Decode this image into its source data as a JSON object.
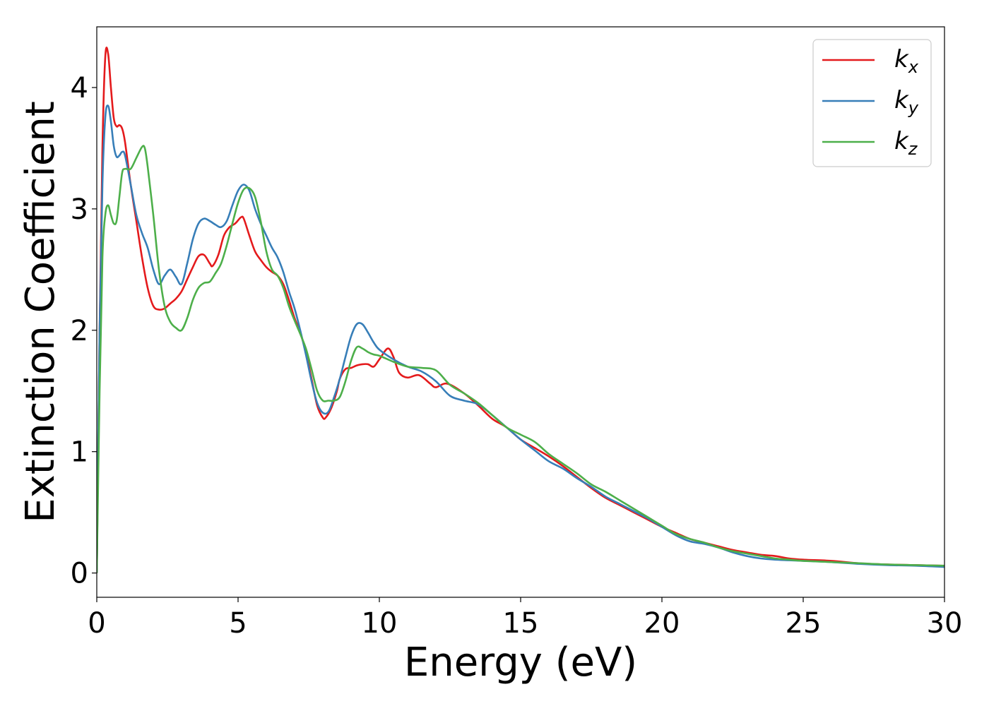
{
  "chart_data": {
    "type": "line",
    "xlabel": "Energy (eV)",
    "ylabel": "Extinction Coefficient",
    "xlim": [
      0,
      30
    ],
    "ylim": [
      -0.2,
      4.5
    ],
    "xticks": [
      0,
      5,
      10,
      15,
      20,
      25,
      30
    ],
    "yticks": [
      0,
      1,
      2,
      3,
      4
    ],
    "xtick_labels": [
      "0",
      "5",
      "10",
      "15",
      "20",
      "25",
      "30"
    ],
    "ytick_labels": [
      "0",
      "1",
      "2",
      "3",
      "4"
    ],
    "grid": false,
    "legend": {
      "position": "top-right",
      "entries": [
        {
          "base": "k",
          "sub": "x",
          "color": "#e41a1c"
        },
        {
          "base": "k",
          "sub": "y",
          "color": "#377eb8"
        },
        {
          "base": "k",
          "sub": "z",
          "color": "#4daf4a"
        }
      ]
    },
    "series": [
      {
        "name": "k_x",
        "color": "#e41a1c",
        "points": [
          [
            0,
            0
          ],
          [
            0.1,
            2.0
          ],
          [
            0.2,
            3.5
          ],
          [
            0.3,
            4.25
          ],
          [
            0.4,
            4.28
          ],
          [
            0.5,
            4.0
          ],
          [
            0.6,
            3.75
          ],
          [
            0.7,
            3.68
          ],
          [
            0.8,
            3.69
          ],
          [
            0.9,
            3.66
          ],
          [
            1.0,
            3.55
          ],
          [
            1.2,
            3.2
          ],
          [
            1.4,
            2.9
          ],
          [
            1.6,
            2.6
          ],
          [
            1.8,
            2.35
          ],
          [
            2.0,
            2.2
          ],
          [
            2.2,
            2.17
          ],
          [
            2.4,
            2.18
          ],
          [
            2.6,
            2.22
          ],
          [
            2.8,
            2.26
          ],
          [
            3.0,
            2.32
          ],
          [
            3.2,
            2.42
          ],
          [
            3.4,
            2.52
          ],
          [
            3.6,
            2.61
          ],
          [
            3.8,
            2.62
          ],
          [
            4.0,
            2.55
          ],
          [
            4.1,
            2.53
          ],
          [
            4.3,
            2.62
          ],
          [
            4.5,
            2.78
          ],
          [
            4.7,
            2.85
          ],
          [
            4.9,
            2.88
          ],
          [
            5.1,
            2.93
          ],
          [
            5.2,
            2.92
          ],
          [
            5.4,
            2.78
          ],
          [
            5.6,
            2.65
          ],
          [
            5.8,
            2.58
          ],
          [
            6.0,
            2.52
          ],
          [
            6.2,
            2.48
          ],
          [
            6.4,
            2.45
          ],
          [
            6.6,
            2.38
          ],
          [
            6.8,
            2.25
          ],
          [
            7.0,
            2.1
          ],
          [
            7.2,
            1.98
          ],
          [
            7.4,
            1.82
          ],
          [
            7.6,
            1.6
          ],
          [
            7.8,
            1.38
          ],
          [
            8.0,
            1.28
          ],
          [
            8.1,
            1.28
          ],
          [
            8.3,
            1.36
          ],
          [
            8.5,
            1.5
          ],
          [
            8.6,
            1.6
          ],
          [
            8.8,
            1.68
          ],
          [
            9.0,
            1.69
          ],
          [
            9.2,
            1.71
          ],
          [
            9.4,
            1.72
          ],
          [
            9.6,
            1.72
          ],
          [
            9.8,
            1.7
          ],
          [
            10.0,
            1.76
          ],
          [
            10.3,
            1.85
          ],
          [
            10.5,
            1.78
          ],
          [
            10.7,
            1.65
          ],
          [
            11.0,
            1.61
          ],
          [
            11.4,
            1.63
          ],
          [
            11.8,
            1.56
          ],
          [
            12.0,
            1.53
          ],
          [
            12.4,
            1.56
          ],
          [
            13.0,
            1.48
          ],
          [
            13.5,
            1.38
          ],
          [
            14.0,
            1.27
          ],
          [
            14.5,
            1.2
          ],
          [
            15.0,
            1.1
          ],
          [
            15.5,
            1.03
          ],
          [
            16.0,
            0.96
          ],
          [
            16.5,
            0.88
          ],
          [
            17.0,
            0.79
          ],
          [
            17.5,
            0.7
          ],
          [
            18.0,
            0.62
          ],
          [
            18.5,
            0.56
          ],
          [
            19.0,
            0.5
          ],
          [
            19.5,
            0.44
          ],
          [
            20.0,
            0.38
          ],
          [
            20.5,
            0.33
          ],
          [
            21.0,
            0.28
          ],
          [
            21.5,
            0.25
          ],
          [
            22.0,
            0.22
          ],
          [
            22.5,
            0.19
          ],
          [
            23.0,
            0.17
          ],
          [
            23.5,
            0.15
          ],
          [
            24.0,
            0.14
          ],
          [
            24.5,
            0.12
          ],
          [
            25.0,
            0.11
          ],
          [
            26.0,
            0.1
          ],
          [
            27.0,
            0.08
          ],
          [
            28.0,
            0.07
          ],
          [
            29.0,
            0.065
          ],
          [
            30.0,
            0.06
          ]
        ]
      },
      {
        "name": "k_y",
        "color": "#377eb8",
        "points": [
          [
            0,
            0
          ],
          [
            0.1,
            2.0
          ],
          [
            0.2,
            3.2
          ],
          [
            0.3,
            3.75
          ],
          [
            0.4,
            3.85
          ],
          [
            0.5,
            3.72
          ],
          [
            0.6,
            3.52
          ],
          [
            0.7,
            3.43
          ],
          [
            0.8,
            3.44
          ],
          [
            0.9,
            3.47
          ],
          [
            1.0,
            3.44
          ],
          [
            1.2,
            3.2
          ],
          [
            1.4,
            2.95
          ],
          [
            1.6,
            2.8
          ],
          [
            1.8,
            2.68
          ],
          [
            2.0,
            2.5
          ],
          [
            2.2,
            2.38
          ],
          [
            2.4,
            2.45
          ],
          [
            2.6,
            2.5
          ],
          [
            2.8,
            2.44
          ],
          [
            3.0,
            2.38
          ],
          [
            3.2,
            2.55
          ],
          [
            3.4,
            2.75
          ],
          [
            3.6,
            2.88
          ],
          [
            3.8,
            2.92
          ],
          [
            4.0,
            2.9
          ],
          [
            4.2,
            2.87
          ],
          [
            4.4,
            2.85
          ],
          [
            4.6,
            2.9
          ],
          [
            4.8,
            3.03
          ],
          [
            5.0,
            3.15
          ],
          [
            5.2,
            3.2
          ],
          [
            5.4,
            3.15
          ],
          [
            5.6,
            3.0
          ],
          [
            5.8,
            2.88
          ],
          [
            6.0,
            2.78
          ],
          [
            6.2,
            2.68
          ],
          [
            6.4,
            2.6
          ],
          [
            6.6,
            2.48
          ],
          [
            6.8,
            2.32
          ],
          [
            7.0,
            2.18
          ],
          [
            7.2,
            2.0
          ],
          [
            7.4,
            1.8
          ],
          [
            7.6,
            1.58
          ],
          [
            7.8,
            1.4
          ],
          [
            8.0,
            1.32
          ],
          [
            8.2,
            1.33
          ],
          [
            8.4,
            1.45
          ],
          [
            8.6,
            1.6
          ],
          [
            8.8,
            1.78
          ],
          [
            9.0,
            1.95
          ],
          [
            9.2,
            2.05
          ],
          [
            9.4,
            2.05
          ],
          [
            9.6,
            1.98
          ],
          [
            9.8,
            1.9
          ],
          [
            10.0,
            1.84
          ],
          [
            10.5,
            1.76
          ],
          [
            11.0,
            1.7
          ],
          [
            11.5,
            1.66
          ],
          [
            12.0,
            1.58
          ],
          [
            12.5,
            1.46
          ],
          [
            13.0,
            1.42
          ],
          [
            13.5,
            1.39
          ],
          [
            14.0,
            1.3
          ],
          [
            14.5,
            1.2
          ],
          [
            15.0,
            1.1
          ],
          [
            15.5,
            1.01
          ],
          [
            16.0,
            0.92
          ],
          [
            16.5,
            0.86
          ],
          [
            17.0,
            0.78
          ],
          [
            17.5,
            0.71
          ],
          [
            18.0,
            0.63
          ],
          [
            18.5,
            0.57
          ],
          [
            19.0,
            0.51
          ],
          [
            19.5,
            0.45
          ],
          [
            20.0,
            0.38
          ],
          [
            20.5,
            0.31
          ],
          [
            21.0,
            0.26
          ],
          [
            21.5,
            0.24
          ],
          [
            22.0,
            0.21
          ],
          [
            22.5,
            0.17
          ],
          [
            23.0,
            0.14
          ],
          [
            23.5,
            0.12
          ],
          [
            24.0,
            0.11
          ],
          [
            24.5,
            0.105
          ],
          [
            25.0,
            0.1
          ],
          [
            26.0,
            0.09
          ],
          [
            27.0,
            0.075
          ],
          [
            28.0,
            0.065
          ],
          [
            29.0,
            0.06
          ],
          [
            30.0,
            0.05
          ]
        ]
      },
      {
        "name": "k_z",
        "color": "#4daf4a",
        "points": [
          [
            0,
            0
          ],
          [
            0.1,
            1.5
          ],
          [
            0.2,
            2.6
          ],
          [
            0.3,
            2.95
          ],
          [
            0.4,
            3.03
          ],
          [
            0.5,
            2.95
          ],
          [
            0.6,
            2.88
          ],
          [
            0.7,
            2.9
          ],
          [
            0.8,
            3.1
          ],
          [
            0.9,
            3.3
          ],
          [
            1.0,
            3.33
          ],
          [
            1.2,
            3.33
          ],
          [
            1.4,
            3.42
          ],
          [
            1.6,
            3.51
          ],
          [
            1.7,
            3.5
          ],
          [
            1.8,
            3.35
          ],
          [
            2.0,
            2.95
          ],
          [
            2.2,
            2.5
          ],
          [
            2.4,
            2.2
          ],
          [
            2.6,
            2.07
          ],
          [
            2.8,
            2.02
          ],
          [
            3.0,
            2.0
          ],
          [
            3.2,
            2.1
          ],
          [
            3.4,
            2.25
          ],
          [
            3.6,
            2.35
          ],
          [
            3.8,
            2.39
          ],
          [
            4.0,
            2.4
          ],
          [
            4.2,
            2.47
          ],
          [
            4.4,
            2.55
          ],
          [
            4.6,
            2.7
          ],
          [
            4.8,
            2.88
          ],
          [
            5.0,
            3.05
          ],
          [
            5.2,
            3.16
          ],
          [
            5.4,
            3.17
          ],
          [
            5.6,
            3.1
          ],
          [
            5.8,
            2.9
          ],
          [
            6.0,
            2.65
          ],
          [
            6.2,
            2.5
          ],
          [
            6.4,
            2.45
          ],
          [
            6.6,
            2.35
          ],
          [
            6.8,
            2.2
          ],
          [
            7.0,
            2.08
          ],
          [
            7.2,
            1.97
          ],
          [
            7.4,
            1.85
          ],
          [
            7.6,
            1.68
          ],
          [
            7.8,
            1.5
          ],
          [
            8.0,
            1.42
          ],
          [
            8.2,
            1.42
          ],
          [
            8.4,
            1.42
          ],
          [
            8.6,
            1.45
          ],
          [
            8.8,
            1.58
          ],
          [
            9.0,
            1.75
          ],
          [
            9.2,
            1.86
          ],
          [
            9.4,
            1.85
          ],
          [
            9.6,
            1.82
          ],
          [
            9.8,
            1.8
          ],
          [
            10.0,
            1.79
          ],
          [
            10.5,
            1.74
          ],
          [
            11.0,
            1.7
          ],
          [
            11.5,
            1.69
          ],
          [
            12.0,
            1.67
          ],
          [
            12.5,
            1.55
          ],
          [
            13.0,
            1.48
          ],
          [
            13.5,
            1.4
          ],
          [
            14.0,
            1.3
          ],
          [
            14.5,
            1.2
          ],
          [
            15.0,
            1.14
          ],
          [
            15.5,
            1.08
          ],
          [
            16.0,
            0.98
          ],
          [
            16.5,
            0.9
          ],
          [
            17.0,
            0.82
          ],
          [
            17.5,
            0.73
          ],
          [
            18.0,
            0.67
          ],
          [
            18.5,
            0.6
          ],
          [
            19.0,
            0.53
          ],
          [
            19.5,
            0.46
          ],
          [
            20.0,
            0.39
          ],
          [
            20.5,
            0.32
          ],
          [
            21.0,
            0.28
          ],
          [
            21.5,
            0.25
          ],
          [
            22.0,
            0.21
          ],
          [
            22.5,
            0.18
          ],
          [
            23.0,
            0.16
          ],
          [
            23.5,
            0.14
          ],
          [
            24.0,
            0.12
          ],
          [
            24.5,
            0.11
          ],
          [
            25.0,
            0.1
          ],
          [
            26.0,
            0.09
          ],
          [
            27.0,
            0.08
          ],
          [
            28.0,
            0.07
          ],
          [
            29.0,
            0.065
          ],
          [
            30.0,
            0.06
          ]
        ]
      }
    ]
  }
}
